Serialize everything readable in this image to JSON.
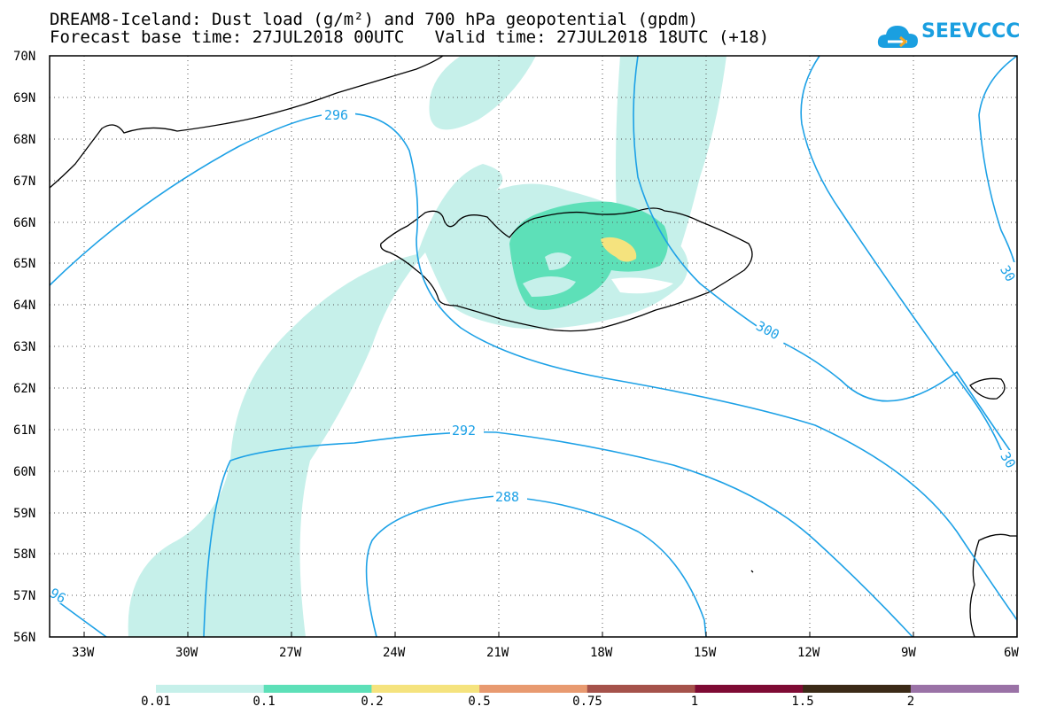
{
  "header": {
    "title_line1": "DREAM8-Iceland: Dust load (g/m²) and 700 hPa geopotential (gpdm)",
    "title_line2": "Forecast base time: 27JUL2018 00UTC   Valid time: 27JUL2018 18UTC (+18)"
  },
  "logo": {
    "text": "SEEVCCC",
    "icon": "cloud-logo-icon",
    "color": "#1a9fe0"
  },
  "map": {
    "lat_labels": [
      "70N",
      "69N",
      "68N",
      "67N",
      "66N",
      "65N",
      "64N",
      "63N",
      "62N",
      "61N",
      "60N",
      "59N",
      "58N",
      "57N",
      "56N"
    ],
    "lon_labels": [
      "33W",
      "30W",
      "27W",
      "24W",
      "21W",
      "18W",
      "15W",
      "12W",
      "9W",
      "6W"
    ],
    "gridlines": "dotted",
    "contour_color": "#1da1e6",
    "contour_labels": [
      "296",
      "300",
      "292",
      "288",
      "96",
      "30",
      "30"
    ]
  },
  "legend": {
    "colors": [
      "#c6f0ea",
      "#5de0b8",
      "#f5e37e",
      "#e89a70",
      "#a5524b",
      "#7e0b34",
      "#3b2a17",
      "#9a72a6"
    ],
    "labels": [
      "0.01",
      "0.1",
      "0.2",
      "0.5",
      "0.75",
      "1",
      "1.5",
      "2"
    ]
  }
}
